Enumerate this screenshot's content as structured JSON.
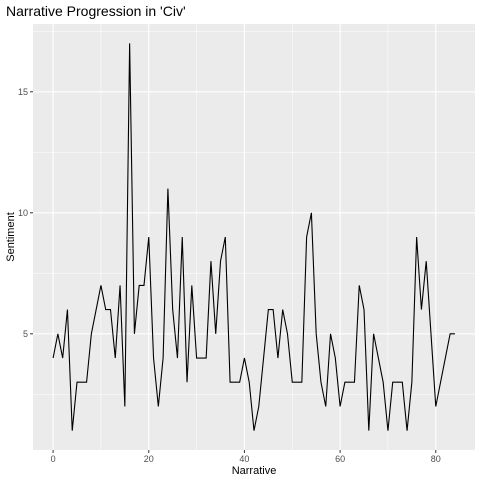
{
  "chart_data": {
    "type": "line",
    "title": "Narrative Progression in 'Civ'",
    "xlabel": "Narrative",
    "ylabel": "Sentiment",
    "x_ticks": [
      0,
      20,
      40,
      60,
      80
    ],
    "y_ticks": [
      5,
      10,
      15
    ],
    "xlim": [
      -4.2,
      88.2
    ],
    "ylim": [
      0.2,
      17.8
    ],
    "grid": true,
    "series": [
      {
        "color": "#000000",
        "x": [
          0,
          1,
          2,
          3,
          4,
          5,
          6,
          7,
          8,
          9,
          10,
          11,
          12,
          13,
          14,
          15,
          16,
          17,
          18,
          19,
          20,
          21,
          22,
          23,
          24,
          25,
          26,
          27,
          28,
          29,
          30,
          31,
          32,
          33,
          34,
          35,
          36,
          37,
          38,
          39,
          40,
          41,
          42,
          43,
          44,
          45,
          46,
          47,
          48,
          49,
          50,
          51,
          52,
          53,
          54,
          55,
          56,
          57,
          58,
          59,
          60,
          61,
          62,
          63,
          64,
          65,
          66,
          67,
          68,
          69,
          70,
          71,
          72,
          73,
          74,
          75,
          76,
          77,
          78,
          79,
          80,
          81,
          82,
          83,
          84
        ],
        "y": [
          4,
          5,
          4,
          6,
          1,
          3,
          3,
          3,
          5,
          6,
          7,
          6,
          6,
          4,
          7,
          2,
          17,
          5,
          7,
          7,
          9,
          4,
          2,
          4,
          11,
          6,
          4,
          9,
          3,
          7,
          4,
          4,
          4,
          8,
          5,
          8,
          9,
          3,
          3,
          3,
          4,
          3,
          1,
          2,
          4,
          6,
          6,
          4,
          6,
          5,
          3,
          3,
          3,
          9,
          10,
          5,
          3,
          2,
          5,
          4,
          2,
          3,
          3,
          3,
          7,
          6,
          1,
          5,
          4,
          3,
          1,
          3,
          3,
          3,
          1,
          3,
          9,
          6,
          8,
          5,
          2,
          3,
          4,
          5,
          5
        ]
      }
    ]
  },
  "colors": {
    "panel_background": "#ebebeb",
    "gridline_major": "#ffffff",
    "line": "#000000"
  }
}
